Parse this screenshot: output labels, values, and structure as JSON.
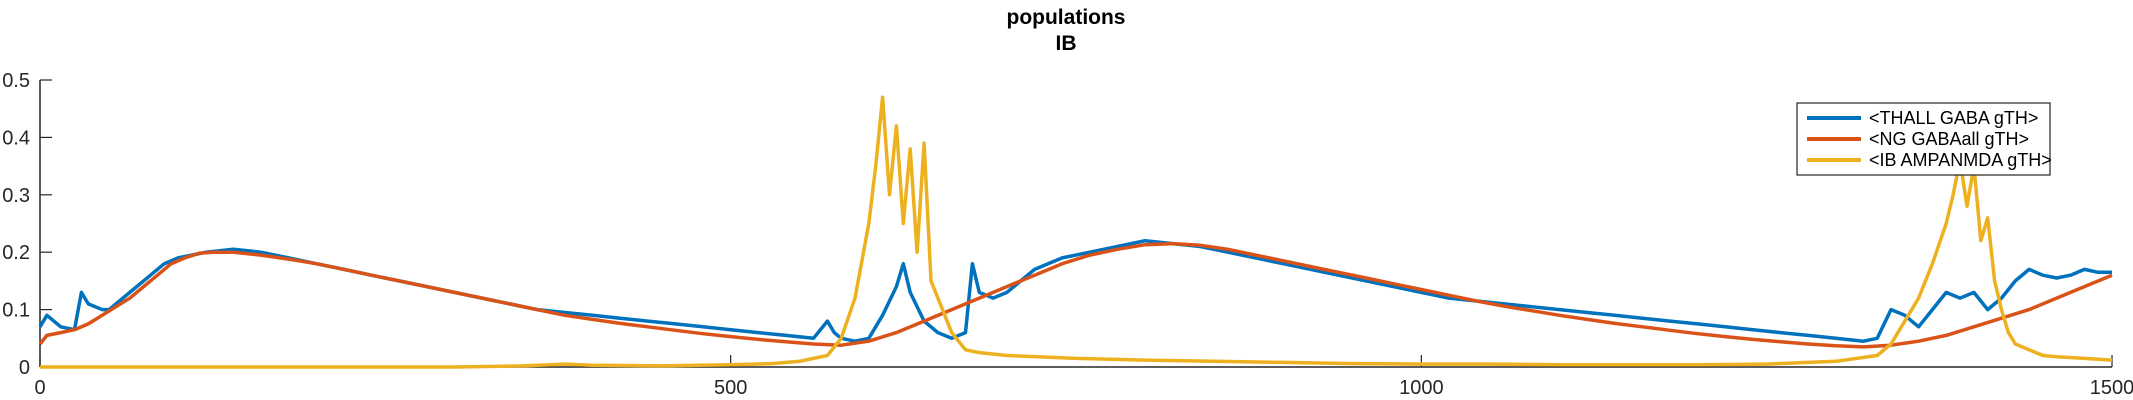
{
  "chart_data": {
    "type": "line",
    "title": "populations",
    "subtitle": "IB",
    "xlabel": "",
    "ylabel": "",
    "xlim": [
      0,
      1500
    ],
    "ylim": [
      0,
      0.5
    ],
    "x_ticks": [
      0,
      500,
      1000,
      1500
    ],
    "x_tick_labels": [
      "0",
      "500",
      "1000",
      "1500"
    ],
    "y_ticks": [
      0,
      0.1,
      0.2,
      0.3,
      0.4,
      0.5
    ],
    "y_tick_labels": [
      "0",
      "0.1",
      "0.2",
      "0.3",
      "0.4",
      "0.5"
    ],
    "grid": false,
    "legend_position": "top-right",
    "series": [
      {
        "name": "<THALL GABA gTH>",
        "color": "#0072BD",
        "x": [
          0,
          5,
          15,
          25,
          30,
          35,
          45,
          50,
          60,
          70,
          80,
          90,
          100,
          110,
          120,
          140,
          160,
          180,
          200,
          220,
          240,
          260,
          280,
          300,
          320,
          340,
          360,
          380,
          400,
          420,
          440,
          460,
          480,
          500,
          520,
          540,
          560,
          570,
          575,
          580,
          590,
          600,
          610,
          620,
          625,
          630,
          640,
          650,
          660,
          670,
          675,
          680,
          690,
          700,
          710,
          720,
          740,
          760,
          780,
          800,
          820,
          840,
          860,
          880,
          900,
          920,
          940,
          960,
          980,
          1000,
          1020,
          1040,
          1060,
          1080,
          1100,
          1120,
          1140,
          1160,
          1180,
          1200,
          1220,
          1240,
          1260,
          1280,
          1300,
          1320,
          1330,
          1340,
          1350,
          1360,
          1370,
          1380,
          1390,
          1400,
          1410,
          1420,
          1430,
          1440,
          1450,
          1460,
          1470,
          1480,
          1490,
          1500
        ],
        "y": [
          0.07,
          0.09,
          0.07,
          0.065,
          0.13,
          0.11,
          0.1,
          0.1,
          0.12,
          0.14,
          0.16,
          0.18,
          0.19,
          0.195,
          0.2,
          0.205,
          0.2,
          0.19,
          0.18,
          0.17,
          0.16,
          0.15,
          0.14,
          0.13,
          0.12,
          0.11,
          0.1,
          0.095,
          0.09,
          0.085,
          0.08,
          0.075,
          0.07,
          0.065,
          0.06,
          0.055,
          0.05,
          0.08,
          0.06,
          0.05,
          0.045,
          0.05,
          0.09,
          0.14,
          0.18,
          0.13,
          0.08,
          0.06,
          0.05,
          0.06,
          0.18,
          0.13,
          0.12,
          0.13,
          0.15,
          0.17,
          0.19,
          0.2,
          0.21,
          0.22,
          0.215,
          0.21,
          0.2,
          0.19,
          0.18,
          0.17,
          0.16,
          0.15,
          0.14,
          0.13,
          0.12,
          0.115,
          0.11,
          0.105,
          0.1,
          0.095,
          0.09,
          0.085,
          0.08,
          0.075,
          0.07,
          0.065,
          0.06,
          0.055,
          0.05,
          0.045,
          0.05,
          0.1,
          0.09,
          0.07,
          0.1,
          0.13,
          0.12,
          0.13,
          0.1,
          0.12,
          0.15,
          0.17,
          0.16,
          0.155,
          0.16,
          0.17,
          0.165,
          0.165
        ]
      },
      {
        "name": "<NG GABAall gTH>",
        "color": "#D95319",
        "x": [
          0,
          5,
          15,
          25,
          35,
          45,
          55,
          65,
          75,
          85,
          95,
          105,
          115,
          125,
          140,
          160,
          180,
          200,
          220,
          240,
          260,
          280,
          300,
          320,
          340,
          360,
          380,
          400,
          420,
          440,
          460,
          480,
          500,
          520,
          540,
          560,
          580,
          600,
          620,
          640,
          660,
          680,
          700,
          720,
          740,
          760,
          780,
          800,
          820,
          840,
          860,
          880,
          900,
          920,
          940,
          960,
          980,
          1000,
          1020,
          1040,
          1060,
          1080,
          1100,
          1120,
          1140,
          1160,
          1180,
          1200,
          1220,
          1240,
          1260,
          1280,
          1300,
          1320,
          1340,
          1360,
          1380,
          1400,
          1420,
          1440,
          1460,
          1480,
          1500
        ],
        "y": [
          0.04,
          0.055,
          0.06,
          0.065,
          0.075,
          0.09,
          0.105,
          0.12,
          0.14,
          0.16,
          0.18,
          0.19,
          0.198,
          0.2,
          0.2,
          0.195,
          0.188,
          0.18,
          0.17,
          0.16,
          0.15,
          0.14,
          0.13,
          0.12,
          0.11,
          0.1,
          0.09,
          0.083,
          0.076,
          0.07,
          0.064,
          0.058,
          0.053,
          0.048,
          0.044,
          0.04,
          0.038,
          0.045,
          0.06,
          0.08,
          0.1,
          0.12,
          0.14,
          0.16,
          0.18,
          0.195,
          0.205,
          0.213,
          0.215,
          0.212,
          0.205,
          0.195,
          0.185,
          0.175,
          0.165,
          0.155,
          0.145,
          0.135,
          0.125,
          0.115,
          0.106,
          0.098,
          0.09,
          0.083,
          0.076,
          0.07,
          0.064,
          0.058,
          0.053,
          0.048,
          0.044,
          0.04,
          0.037,
          0.035,
          0.038,
          0.045,
          0.055,
          0.07,
          0.085,
          0.1,
          0.12,
          0.14,
          0.16
        ]
      },
      {
        "name": "<IB AMPANMDA gTH>",
        "color": "#EDB120",
        "x": [
          0,
          50,
          100,
          150,
          200,
          250,
          300,
          350,
          380,
          400,
          450,
          500,
          530,
          550,
          560,
          570,
          580,
          590,
          600,
          605,
          610,
          615,
          620,
          625,
          630,
          635,
          640,
          645,
          650,
          655,
          660,
          670,
          680,
          700,
          750,
          800,
          850,
          900,
          950,
          1000,
          1050,
          1100,
          1150,
          1200,
          1250,
          1300,
          1330,
          1340,
          1350,
          1360,
          1370,
          1380,
          1385,
          1390,
          1395,
          1400,
          1405,
          1410,
          1415,
          1420,
          1425,
          1430,
          1440,
          1450,
          1460,
          1480,
          1500
        ],
        "y": [
          0,
          0,
          0,
          0,
          0,
          0,
          0,
          0.002,
          0.005,
          0.003,
          0.002,
          0.004,
          0.006,
          0.01,
          0.015,
          0.02,
          0.05,
          0.12,
          0.25,
          0.35,
          0.47,
          0.3,
          0.42,
          0.25,
          0.38,
          0.2,
          0.39,
          0.15,
          0.12,
          0.09,
          0.06,
          0.03,
          0.025,
          0.02,
          0.015,
          0.012,
          0.01,
          0.008,
          0.006,
          0.005,
          0.005,
          0.004,
          0.004,
          0.004,
          0.005,
          0.01,
          0.02,
          0.04,
          0.08,
          0.12,
          0.18,
          0.25,
          0.3,
          0.36,
          0.28,
          0.35,
          0.22,
          0.26,
          0.15,
          0.1,
          0.06,
          0.04,
          0.03,
          0.02,
          0.018,
          0.015,
          0.012
        ]
      }
    ]
  }
}
